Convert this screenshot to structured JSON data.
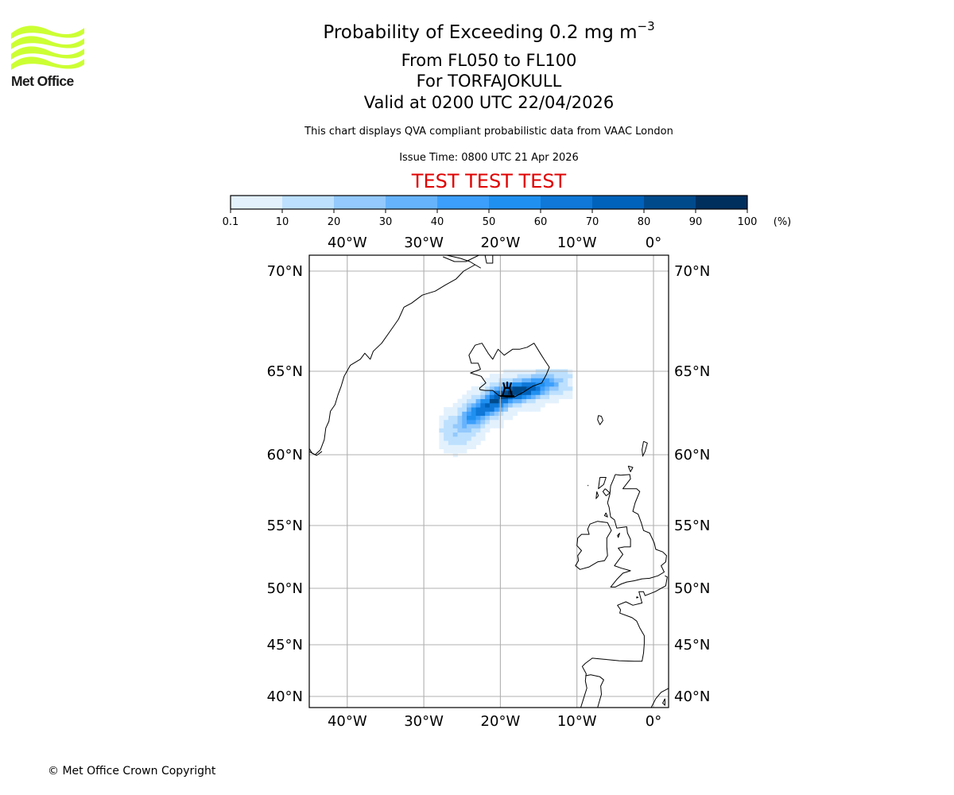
{
  "logo": {
    "text": "Met Office",
    "color": "#ccff33"
  },
  "header": {
    "title_main": "Probability of Exceeding 0.2 mg m",
    "title_sup": "−3",
    "subtitle_levels": "From FL050 to FL100",
    "subtitle_volcano": "For TORFAJOKULL",
    "subtitle_valid": "Valid at 0200 UTC 22/04/2026",
    "description": "This chart displays QVA compliant probabilistic data from VAAC London",
    "issue_time": "Issue Time: 0800 UTC 21 Apr 2026",
    "test_banner": "TEST TEST TEST",
    "test_color": "#e00000"
  },
  "footer": {
    "copyright": "© Met Office Crown Copyright"
  },
  "chart_data": {
    "type": "heatmap",
    "title": "Probability of Exceeding 0.2 mg m−3",
    "units_label": "(%)",
    "colorbar": {
      "bounds": [
        0.1,
        10,
        20,
        30,
        40,
        50,
        60,
        70,
        80,
        90,
        100
      ],
      "tick_labels": [
        "0.1",
        "10",
        "20",
        "30",
        "40",
        "50",
        "60",
        "70",
        "80",
        "90",
        "100"
      ],
      "colors": [
        "#e3f1fd",
        "#bde0fe",
        "#93c9fc",
        "#66b3fc",
        "#3c9ffc",
        "#2090f0",
        "#0f78d8",
        "#0062bb",
        "#004a8c",
        "#002f5e"
      ],
      "placement": "top"
    },
    "map": {
      "lon_range": [
        -45,
        2
      ],
      "lat_range": [
        39.5,
        71
      ],
      "grid": true,
      "lon_ticks": [
        -40,
        -30,
        -20,
        -10,
        0
      ],
      "lon_tick_labels": [
        "40°W",
        "30°W",
        "20°W",
        "10°W",
        "0°"
      ],
      "lat_ticks": [
        70,
        65,
        60,
        55,
        50,
        45,
        40
      ],
      "lat_tick_labels": [
        "70°N",
        "65°N",
        "60°N",
        "55°N",
        "50°N",
        "45°N",
        "40°N"
      ],
      "volcano": {
        "name": "TORFAJOKULL",
        "lon": -19.1,
        "lat": 63.9
      }
    },
    "plume": {
      "description_axis": "probability (%) by lon/lat cell",
      "core_axis": {
        "start": [
          -26.0,
          60.9
        ],
        "end": [
          -12.5,
          64.5
        ]
      },
      "cells": [
        {
          "lon": -19.0,
          "lat": 63.6,
          "p": 95
        },
        {
          "lon": -18.0,
          "lat": 63.7,
          "p": 92
        },
        {
          "lon": -20.0,
          "lat": 63.4,
          "p": 90
        },
        {
          "lon": -17.0,
          "lat": 63.8,
          "p": 85
        },
        {
          "lon": -21.0,
          "lat": 63.1,
          "p": 85
        },
        {
          "lon": -22.0,
          "lat": 62.8,
          "p": 78
        },
        {
          "lon": -16.0,
          "lat": 63.9,
          "p": 75
        },
        {
          "lon": -23.0,
          "lat": 62.5,
          "p": 68
        },
        {
          "lon": -15.0,
          "lat": 64.1,
          "p": 60
        },
        {
          "lon": -24.0,
          "lat": 62.1,
          "p": 55
        },
        {
          "lon": -14.0,
          "lat": 64.2,
          "p": 45
        },
        {
          "lon": -25.0,
          "lat": 61.7,
          "p": 35
        },
        {
          "lon": -13.0,
          "lat": 64.3,
          "p": 25
        },
        {
          "lon": -26.0,
          "lat": 61.2,
          "p": 20
        }
      ]
    }
  }
}
